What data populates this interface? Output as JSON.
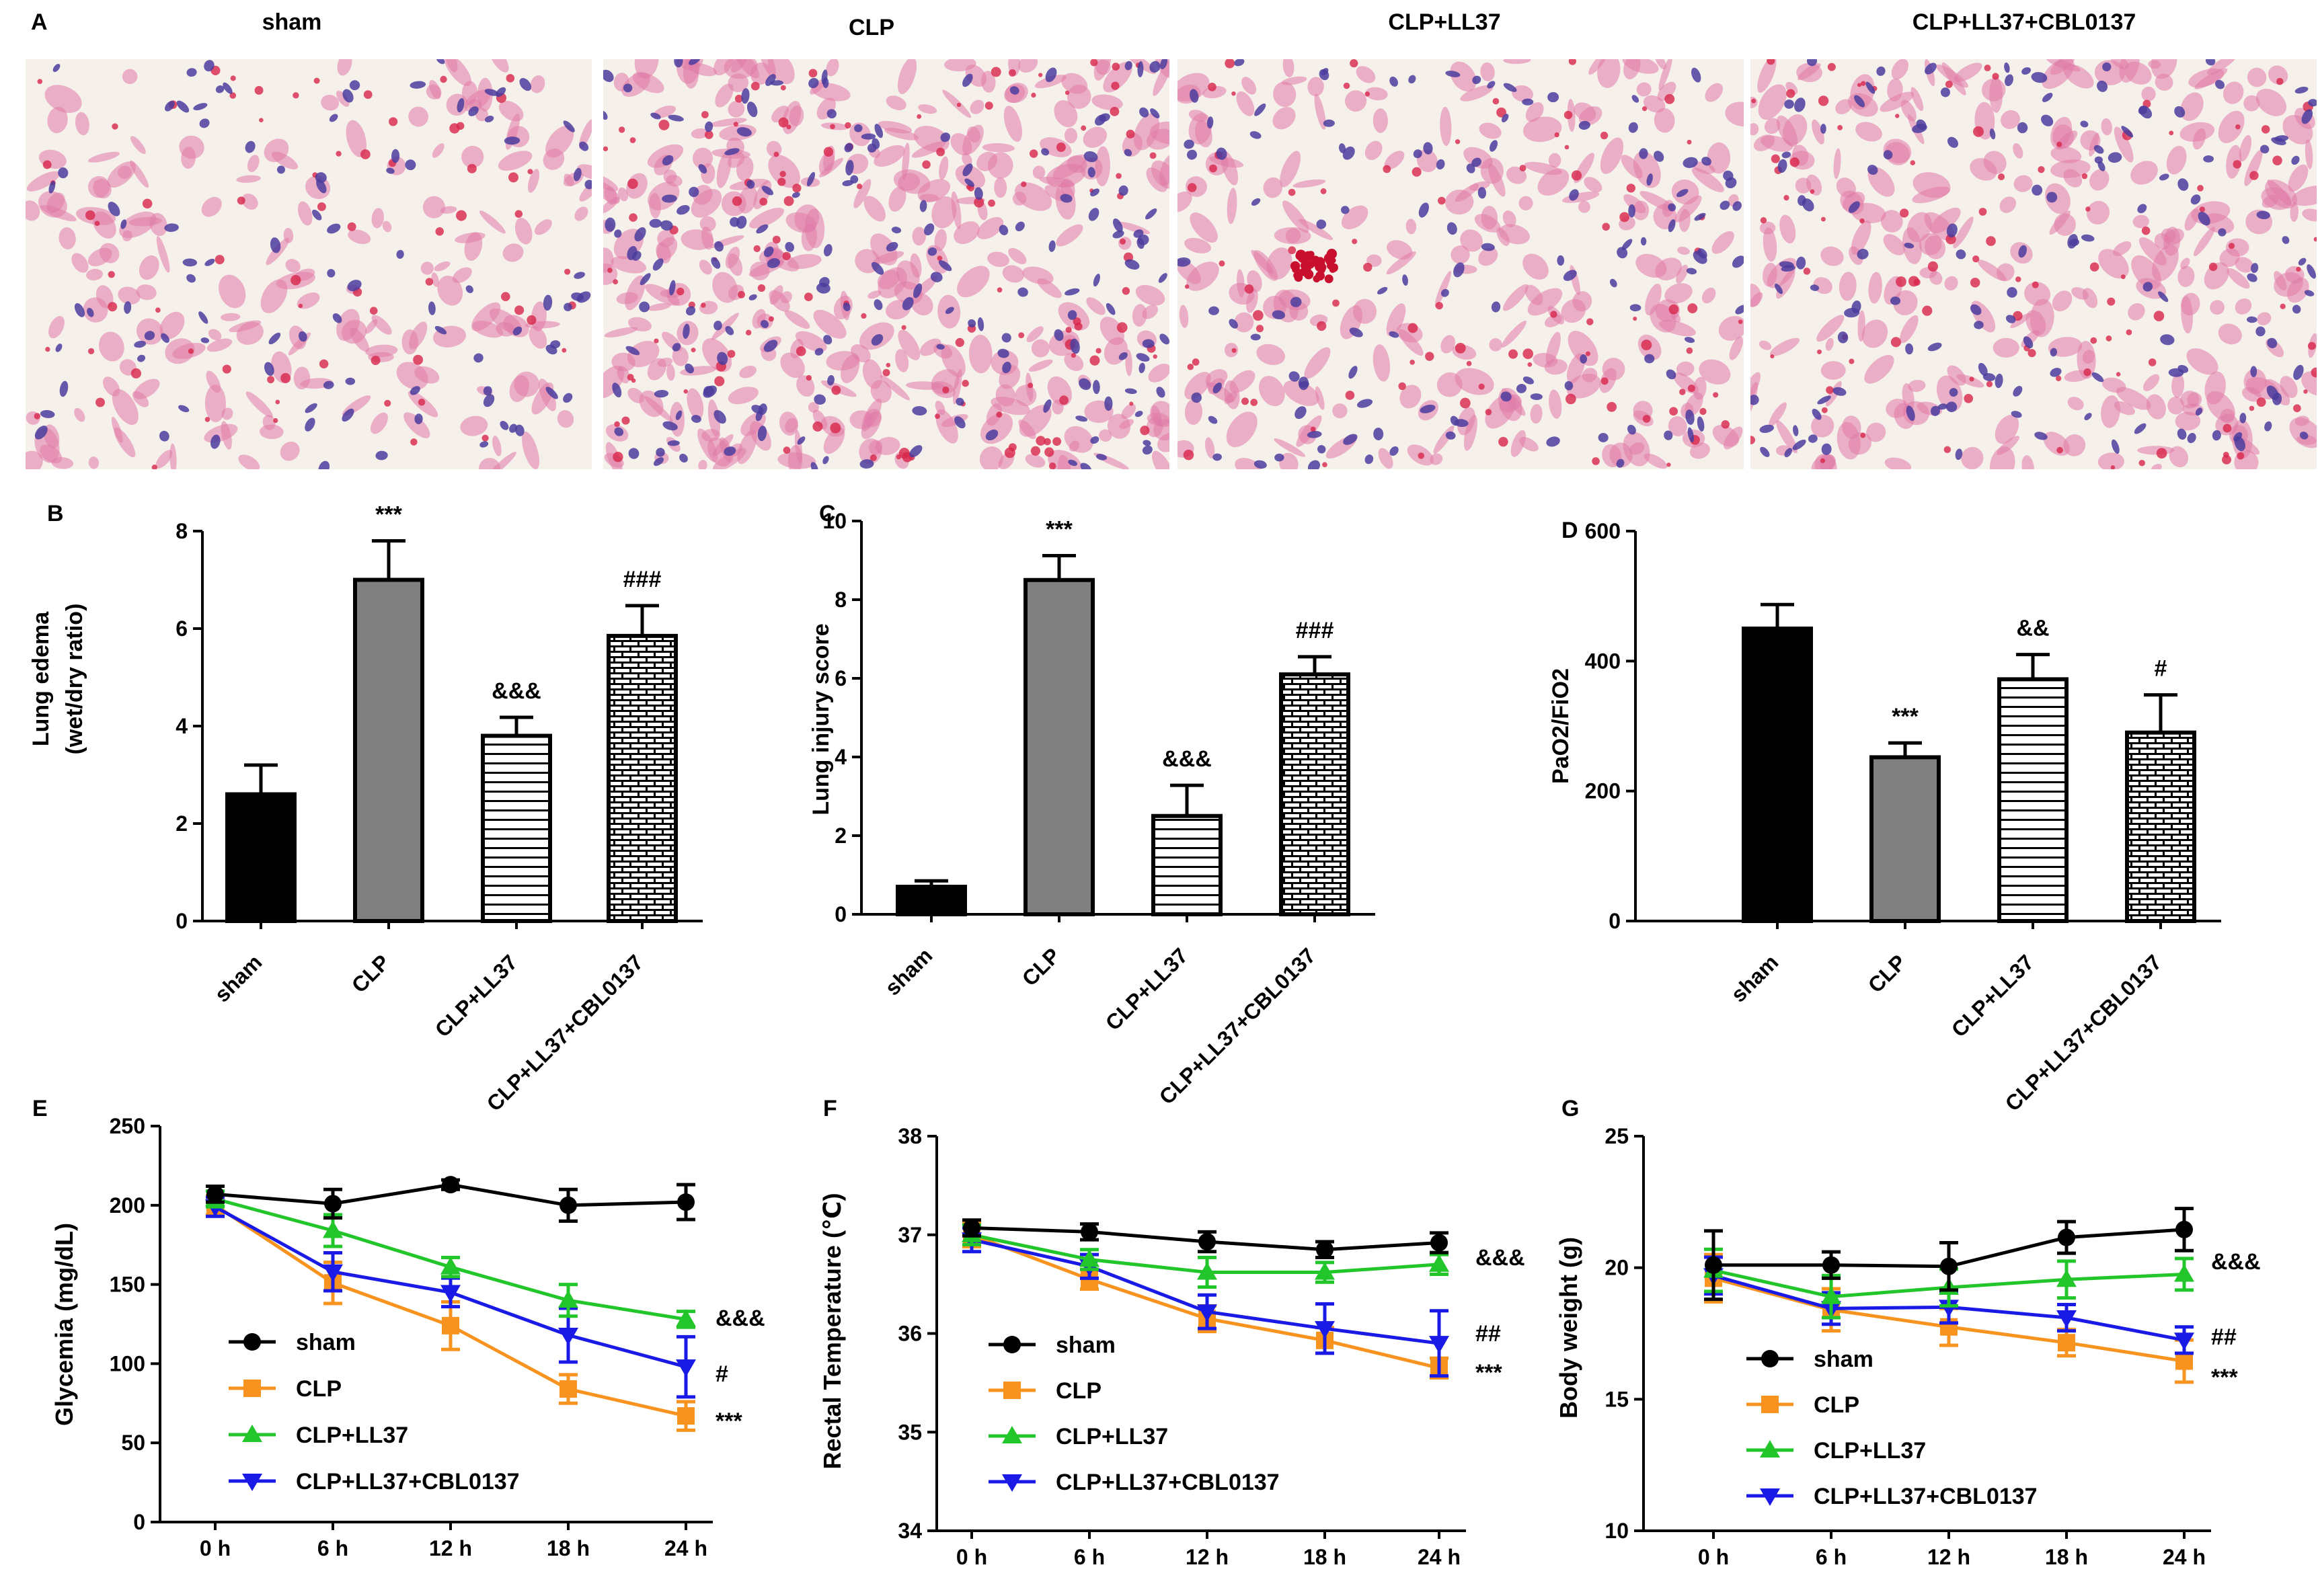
{
  "figure": {
    "panel_letters": [
      "A",
      "B",
      "C",
      "D",
      "E",
      "F",
      "G"
    ],
    "histology": {
      "panel_letter": "A",
      "titles": [
        "sham",
        "CLP",
        "CLP+LL37",
        "CLP+LL37+CBL0137"
      ]
    }
  },
  "colors": {
    "black": "#000000",
    "gray": "#808080",
    "orange": "#F7931E",
    "green": "#22C52A",
    "blue": "#1A1AE6",
    "tissue_bg": "#F6F0EA",
    "tissue_pink": "#E07AA8",
    "tissue_red": "#D8264A",
    "tissue_nuclei": "#4B3C9E"
  },
  "chart_data": [
    {
      "id": "B",
      "type": "bar",
      "panel_letter": "B",
      "categories": [
        "sham",
        "CLP",
        "CLP+LL37",
        "CLP+LL37+CBL0137"
      ],
      "values": [
        2.6,
        7.0,
        3.8,
        5.85
      ],
      "errors": [
        0.6,
        0.8,
        0.38,
        0.62
      ],
      "fills": [
        "solid-black",
        "solid-gray",
        "horizontal-lines",
        "brick"
      ],
      "annotations": [
        "",
        "***",
        "&&&",
        "###"
      ],
      "ylabel": "Lung edema",
      "ylabel2": "(wet/dry ratio)",
      "ylim": [
        0,
        8
      ],
      "yticks": [
        "0",
        "2",
        "4",
        "6",
        "8"
      ]
    },
    {
      "id": "C",
      "type": "bar",
      "panel_letter": "C",
      "categories": [
        "sham",
        "CLP",
        "CLP+LL37",
        "CLP+LL37+CBL0137"
      ],
      "values": [
        0.7,
        8.5,
        2.5,
        6.1
      ],
      "errors": [
        0.15,
        0.62,
        0.78,
        0.45
      ],
      "fills": [
        "solid-black",
        "solid-gray",
        "horizontal-lines",
        "brick"
      ],
      "annotations": [
        "",
        "***",
        "&&&",
        "###"
      ],
      "ylabel": "Lung injury score",
      "ylim": [
        0,
        10
      ],
      "yticks": [
        "0",
        "2",
        "4",
        "6",
        "8",
        "10"
      ]
    },
    {
      "id": "D",
      "type": "bar",
      "panel_letter": "D",
      "categories": [
        "sham",
        "CLP",
        "CLP+LL37",
        "CLP+LL37+CBL0137"
      ],
      "values": [
        450,
        252,
        372,
        290
      ],
      "errors": [
        37,
        22,
        38,
        58
      ],
      "fills": [
        "solid-black",
        "solid-gray",
        "horizontal-lines",
        "brick"
      ],
      "annotations": [
        "",
        "***",
        "&&",
        "#"
      ],
      "ylabel": "PaO2/FiO2",
      "ylim": [
        0,
        600
      ],
      "yticks": [
        "0",
        "200",
        "400",
        "600"
      ]
    },
    {
      "id": "E",
      "type": "line",
      "panel_letter": "E",
      "x": [
        "0 h",
        "6 h",
        "12 h",
        "18 h",
        "24 h"
      ],
      "ylabel": "Glycemia (mg/dL)",
      "ylim": [
        0,
        250
      ],
      "yticks": [
        "0",
        "50",
        "100",
        "150",
        "200",
        "250"
      ],
      "series": [
        {
          "name": "sham",
          "marker": "circle",
          "color": "#000000",
          "values": [
            207,
            201,
            213,
            200,
            202
          ],
          "errors": [
            5,
            9,
            3,
            10,
            11
          ]
        },
        {
          "name": "CLP",
          "marker": "square",
          "color": "#F7931E",
          "values": [
            200,
            151,
            124,
            84,
            67
          ],
          "errors": [
            6,
            13,
            15,
            9,
            9
          ]
        },
        {
          "name": "CLP+LL37",
          "marker": "triangle-up",
          "color": "#22C52A",
          "values": [
            204,
            184,
            161,
            140,
            128
          ],
          "errors": [
            5,
            10,
            6,
            10,
            5
          ]
        },
        {
          "name": "CLP+LL37+CBL0137",
          "marker": "triangle-down",
          "color": "#1A1AE6",
          "values": [
            199,
            158,
            145,
            118,
            98
          ],
          "errors": [
            6,
            12,
            9,
            17,
            19
          ]
        }
      ],
      "annotations": [
        "&&&",
        "#",
        "***"
      ]
    },
    {
      "id": "F",
      "type": "line",
      "panel_letter": "F",
      "x": [
        "0 h",
        "6 h",
        "12 h",
        "18 h",
        "24 h"
      ],
      "ylabel": "Rectal Temperature (℃)",
      "ylim": [
        34,
        38
      ],
      "yticks": [
        "34",
        "35",
        "36",
        "37",
        "38"
      ],
      "series": [
        {
          "name": "sham",
          "marker": "circle",
          "color": "#000000",
          "values": [
            37.07,
            37.03,
            36.93,
            36.85,
            36.92
          ],
          "errors": [
            0.08,
            0.08,
            0.1,
            0.08,
            0.1
          ]
        },
        {
          "name": "CLP",
          "marker": "square",
          "color": "#F7931E",
          "values": [
            37.0,
            36.55,
            36.15,
            35.93,
            35.65
          ],
          "errors": [
            0.12,
            0.1,
            0.13,
            0.13,
            0.1
          ]
        },
        {
          "name": "CLP+LL37",
          "marker": "triangle-up",
          "color": "#22C52A",
          "values": [
            37.0,
            36.75,
            36.62,
            36.62,
            36.7
          ],
          "errors": [
            0.1,
            0.1,
            0.15,
            0.1,
            0.1
          ]
        },
        {
          "name": "CLP+LL37+CBL0137",
          "marker": "triangle-down",
          "color": "#1A1AE6",
          "values": [
            36.95,
            36.68,
            36.22,
            36.05,
            35.9
          ],
          "errors": [
            0.12,
            0.12,
            0.17,
            0.25,
            0.33
          ]
        }
      ],
      "annotations": [
        "&&&",
        "##",
        "***"
      ]
    },
    {
      "id": "G",
      "type": "line",
      "panel_letter": "G",
      "x": [
        "0 h",
        "6 h",
        "12 h",
        "18 h",
        "24 h"
      ],
      "ylabel": "Body weight (g)",
      "ylim": [
        10,
        25
      ],
      "yticks": [
        "10",
        "15",
        "20",
        "25"
      ],
      "series": [
        {
          "name": "sham",
          "marker": "circle",
          "color": "#000000",
          "values": [
            20.1,
            20.1,
            20.05,
            21.15,
            21.45
          ],
          "errors": [
            1.3,
            0.5,
            0.9,
            0.6,
            0.8
          ]
        },
        {
          "name": "CLP",
          "marker": "square",
          "color": "#F7931E",
          "values": [
            19.6,
            18.4,
            17.75,
            17.15,
            16.45
          ],
          "errors": [
            0.9,
            0.8,
            0.7,
            0.5,
            0.8
          ]
        },
        {
          "name": "CLP+LL37",
          "marker": "triangle-up",
          "color": "#22C52A",
          "values": [
            19.9,
            18.9,
            19.25,
            19.55,
            19.75
          ],
          "errors": [
            0.8,
            0.8,
            0.7,
            0.7,
            0.6
          ]
        },
        {
          "name": "CLP+LL37+CBL0137",
          "marker": "triangle-down",
          "color": "#1A1AE6",
          "values": [
            19.7,
            18.45,
            18.5,
            18.1,
            17.25
          ],
          "errors": [
            0.7,
            0.6,
            0.6,
            0.5,
            0.5
          ]
        }
      ],
      "annotations": [
        "&&&",
        "##",
        "***"
      ]
    }
  ]
}
